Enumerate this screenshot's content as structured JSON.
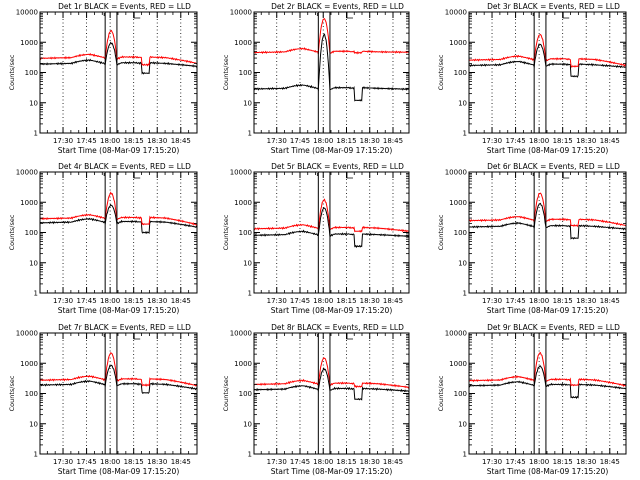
{
  "figure": {
    "background": "#ffffff",
    "axis_color": "#000000"
  },
  "chart_data": [
    {
      "type": "line",
      "title": "Det 1r BLACK = Events, RED = LLD",
      "xlabel": "Start Time (08-Mar-09 17:15:20)",
      "ylabel": "Counts/sec",
      "x_tick_labels": [
        "17:30",
        "17:45",
        "18:00",
        "18:15",
        "18:30",
        "18:45"
      ],
      "y_tick_labels": [
        "1",
        "10",
        "100",
        "1000",
        "10000"
      ],
      "y_scale": "log",
      "ylim": [
        1,
        10000
      ],
      "series": [
        {
          "name": "Events",
          "color": "#000000",
          "base": 200,
          "peak": 950,
          "dip": 95,
          "end": 160
        },
        {
          "name": "LLD",
          "color": "#ff0000",
          "base": 310,
          "peak": 2400,
          "dip": 180,
          "end": 200
        }
      ]
    },
    {
      "type": "line",
      "title": "Det 2r BLACK = Events, RED = LLD",
      "xlabel": "Start Time (08-Mar-09 17:15:20)",
      "ylabel": "Counts/sec",
      "x_tick_labels": [
        "17:30",
        "17:45",
        "18:00",
        "18:15",
        "18:30",
        "18:45"
      ],
      "y_tick_labels": [
        "1",
        "10",
        "100",
        "1000",
        "10000"
      ],
      "y_scale": "log",
      "ylim": [
        1,
        10000
      ],
      "series": [
        {
          "name": "Events",
          "color": "#000000",
          "base": 30,
          "peak": 1800,
          "dip": 12,
          "end": 28
        },
        {
          "name": "LLD",
          "color": "#ff0000",
          "base": 480,
          "peak": 6000,
          "dip": 450,
          "end": 470
        }
      ]
    },
    {
      "type": "line",
      "title": "Det 3r BLACK = Events, RED = LLD",
      "xlabel": "Start Time (08-Mar-09 17:15:20)",
      "ylabel": "Counts/sec",
      "x_tick_labels": [
        "17:30",
        "17:45",
        "18:00",
        "18:15",
        "18:30",
        "18:45"
      ],
      "y_tick_labels": [
        "1",
        "10",
        "100",
        "1000",
        "10000"
      ],
      "y_scale": "log",
      "ylim": [
        1,
        10000
      ],
      "series": [
        {
          "name": "Events",
          "color": "#000000",
          "base": 180,
          "peak": 850,
          "dip": 75,
          "end": 150
        },
        {
          "name": "LLD",
          "color": "#ff0000",
          "base": 270,
          "peak": 1800,
          "dip": 160,
          "end": 170
        }
      ]
    },
    {
      "type": "line",
      "title": "Det 4r BLACK = Events, RED = LLD",
      "xlabel": "Start Time (08-Mar-09 17:15:20)",
      "ylabel": "Counts/sec",
      "x_tick_labels": [
        "17:30",
        "17:45",
        "18:00",
        "18:15",
        "18:30",
        "18:45"
      ],
      "y_tick_labels": [
        "1",
        "10",
        "100",
        "1000",
        "10000"
      ],
      "y_scale": "log",
      "ylim": [
        1,
        10000
      ],
      "series": [
        {
          "name": "Events",
          "color": "#000000",
          "base": 220,
          "peak": 800,
          "dip": 100,
          "end": 150
        },
        {
          "name": "LLD",
          "color": "#ff0000",
          "base": 300,
          "peak": 2000,
          "dip": 190,
          "end": 180
        }
      ]
    },
    {
      "type": "line",
      "title": "Det 5r BLACK = Events, RED = LLD",
      "xlabel": "Start Time (08-Mar-09 17:15:20)",
      "ylabel": "Counts/sec",
      "x_tick_labels": [
        "17:30",
        "17:45",
        "18:00",
        "18:15",
        "18:30",
        "18:45"
      ],
      "y_tick_labels": [
        "1",
        "10",
        "100",
        "1000",
        "10000"
      ],
      "y_scale": "log",
      "ylim": [
        1,
        10000
      ],
      "series": [
        {
          "name": "Events",
          "color": "#000000",
          "base": 85,
          "peak": 650,
          "dip": 35,
          "end": 75
        },
        {
          "name": "LLD",
          "color": "#ff0000",
          "base": 140,
          "peak": 1200,
          "dip": 110,
          "end": 110
        }
      ]
    },
    {
      "type": "line",
      "title": "Det 6r BLACK = Events, RED = LLD",
      "xlabel": "Start Time (08-Mar-09 17:15:20)",
      "ylabel": "Counts/sec",
      "x_tick_labels": [
        "17:30",
        "17:45",
        "18:00",
        "18:15",
        "18:30",
        "18:45"
      ],
      "y_tick_labels": [
        "1",
        "10",
        "100",
        "1000",
        "10000"
      ],
      "y_scale": "log",
      "ylim": [
        1,
        10000
      ],
      "series": [
        {
          "name": "Events",
          "color": "#000000",
          "base": 160,
          "peak": 900,
          "dip": 65,
          "end": 130
        },
        {
          "name": "LLD",
          "color": "#ff0000",
          "base": 260,
          "peak": 2000,
          "dip": 170,
          "end": 170
        }
      ]
    },
    {
      "type": "line",
      "title": "Det 7r BLACK = Events, RED = LLD",
      "xlabel": "Start Time (08-Mar-09 17:15:20)",
      "ylabel": "Counts/sec",
      "x_tick_labels": [
        "17:30",
        "17:45",
        "18:00",
        "18:15",
        "18:30",
        "18:45"
      ],
      "y_tick_labels": [
        "1",
        "10",
        "100",
        "1000",
        "10000"
      ],
      "y_scale": "log",
      "ylim": [
        1,
        10000
      ],
      "series": [
        {
          "name": "Events",
          "color": "#000000",
          "base": 200,
          "peak": 850,
          "dip": 105,
          "end": 140
        },
        {
          "name": "LLD",
          "color": "#ff0000",
          "base": 290,
          "peak": 2200,
          "dip": 190,
          "end": 180
        }
      ]
    },
    {
      "type": "line",
      "title": "Det 8r BLACK = Events, RED = LLD",
      "xlabel": "Start Time (08-Mar-09 17:15:20)",
      "ylabel": "Counts/sec",
      "x_tick_labels": [
        "17:30",
        "17:45",
        "18:00",
        "18:15",
        "18:30",
        "18:45"
      ],
      "y_tick_labels": [
        "1",
        "10",
        "100",
        "1000",
        "10000"
      ],
      "y_scale": "log",
      "ylim": [
        1,
        10000
      ],
      "series": [
        {
          "name": "Events",
          "color": "#000000",
          "base": 140,
          "peak": 650,
          "dip": 65,
          "end": 120
        },
        {
          "name": "LLD",
          "color": "#ff0000",
          "base": 210,
          "peak": 1500,
          "dip": 170,
          "end": 160
        }
      ]
    },
    {
      "type": "line",
      "title": "Det 9r BLACK = Events, RED = LLD",
      "xlabel": "Start Time (08-Mar-09 17:15:20)",
      "ylabel": "Counts/sec",
      "x_tick_labels": [
        "17:30",
        "17:45",
        "18:00",
        "18:15",
        "18:30",
        "18:45"
      ],
      "y_tick_labels": [
        "1",
        "10",
        "100",
        "1000",
        "10000"
      ],
      "y_scale": "log",
      "ylim": [
        1,
        10000
      ],
      "series": [
        {
          "name": "Events",
          "color": "#000000",
          "base": 190,
          "peak": 800,
          "dip": 75,
          "end": 145
        },
        {
          "name": "LLD",
          "color": "#ff0000",
          "base": 280,
          "peak": 2200,
          "dip": 190,
          "end": 180
        }
      ]
    }
  ]
}
